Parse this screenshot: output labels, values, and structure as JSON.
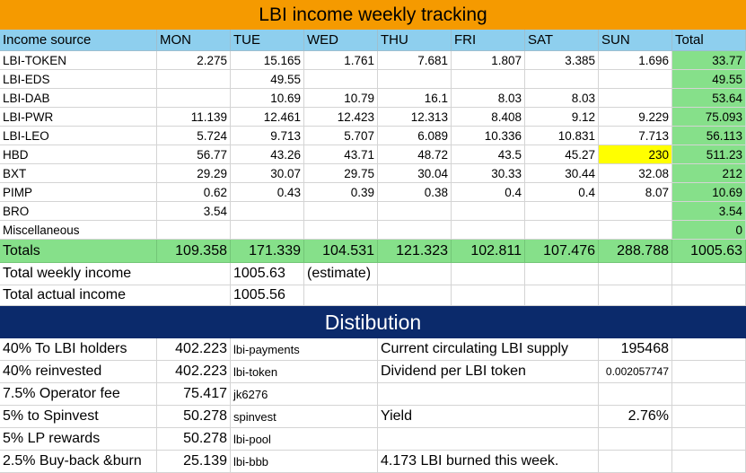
{
  "title": "LBI income weekly tracking",
  "headers": [
    "Income source",
    "MON",
    "TUE",
    "WED",
    "THU",
    "FRI",
    "SAT",
    "SUN",
    "Total"
  ],
  "rows": [
    {
      "source": "LBI-TOKEN",
      "mon": "2.275",
      "tue": "15.165",
      "wed": "1.761",
      "thu": "7.681",
      "fri": "1.807",
      "sat": "3.385",
      "sun": "1.696",
      "total": "33.77"
    },
    {
      "source": "LBI-EDS",
      "mon": "",
      "tue": "49.55",
      "wed": "",
      "thu": "",
      "fri": "",
      "sat": "",
      "sun": "",
      "total": "49.55"
    },
    {
      "source": "LBI-DAB",
      "mon": "",
      "tue": "10.69",
      "wed": "10.79",
      "thu": "16.1",
      "fri": "8.03",
      "sat": "8.03",
      "sun": "",
      "total": "53.64"
    },
    {
      "source": "LBI-PWR",
      "mon": "11.139",
      "tue": "12.461",
      "wed": "12.423",
      "thu": "12.313",
      "fri": "8.408",
      "sat": "9.12",
      "sun": "9.229",
      "total": "75.093"
    },
    {
      "source": "LBI-LEO",
      "mon": "5.724",
      "tue": "9.713",
      "wed": "5.707",
      "thu": "6.089",
      "fri": "10.336",
      "sat": "10.831",
      "sun": "7.713",
      "total": "56.113"
    },
    {
      "source": "HBD",
      "mon": "56.77",
      "tue": "43.26",
      "wed": "43.71",
      "thu": "48.72",
      "fri": "43.5",
      "sat": "45.27",
      "sun": "230",
      "total": "511.23"
    },
    {
      "source": "BXT",
      "mon": "29.29",
      "tue": "30.07",
      "wed": "29.75",
      "thu": "30.04",
      "fri": "30.33",
      "sat": "30.44",
      "sun": "32.08",
      "total": "212"
    },
    {
      "source": "PIMP",
      "mon": "0.62",
      "tue": "0.43",
      "wed": "0.39",
      "thu": "0.38",
      "fri": "0.4",
      "sat": "0.4",
      "sun": "8.07",
      "total": "10.69"
    },
    {
      "source": "BRO",
      "mon": "3.54",
      "tue": "",
      "wed": "",
      "thu": "",
      "fri": "",
      "sat": "",
      "sun": "",
      "total": "3.54"
    },
    {
      "source": "Miscellaneous",
      "mon": "",
      "tue": "",
      "wed": "",
      "thu": "",
      "fri": "",
      "sat": "",
      "sun": "",
      "total": "0"
    }
  ],
  "totals": {
    "label": "Totals",
    "mon": "109.358",
    "tue": "171.339",
    "wed": "104.531",
    "thu": "121.323",
    "fri": "102.811",
    "sat": "107.476",
    "sun": "288.788",
    "total": "1005.63"
  },
  "weekly": {
    "label": "Total weekly income",
    "value": "1005.63",
    "note": "(estimate)"
  },
  "actual": {
    "label": "Total actual income",
    "value": "1005.56"
  },
  "distribution_title": "Distibution",
  "distribution": [
    {
      "label": "40% To LBI holders",
      "value": "402.223",
      "account": "lbi-payments",
      "info_label": "Current circulating LBI supply",
      "info_value": "195468"
    },
    {
      "label": "40% reinvested",
      "value": "402.223",
      "account": "lbi-token",
      "info_label": "Dividend per LBI token",
      "info_value": "0.002057747"
    },
    {
      "label": "7.5% Operator fee",
      "value": "75.417",
      "account": "jk6276",
      "info_label": "",
      "info_value": ""
    },
    {
      "label": "5% to Spinvest",
      "value": "50.278",
      "account": "spinvest",
      "info_label": "Yield",
      "info_value": "2.76%"
    },
    {
      "label": "5% LP rewards",
      "value": "50.278",
      "account": "lbi-pool",
      "info_label": "",
      "info_value": ""
    },
    {
      "label": "2.5% Buy-back &burn",
      "value": "25.139",
      "account": "lbi-bbb",
      "info_label": "4.173 LBI burned this week.",
      "info_value": ""
    }
  ],
  "colors": {
    "title_bg": "#f59a00",
    "header_bg": "#8ecfee",
    "total_bg": "#86e08a",
    "highlight": "#ffff00",
    "dist_bg": "#0b2a6b"
  }
}
